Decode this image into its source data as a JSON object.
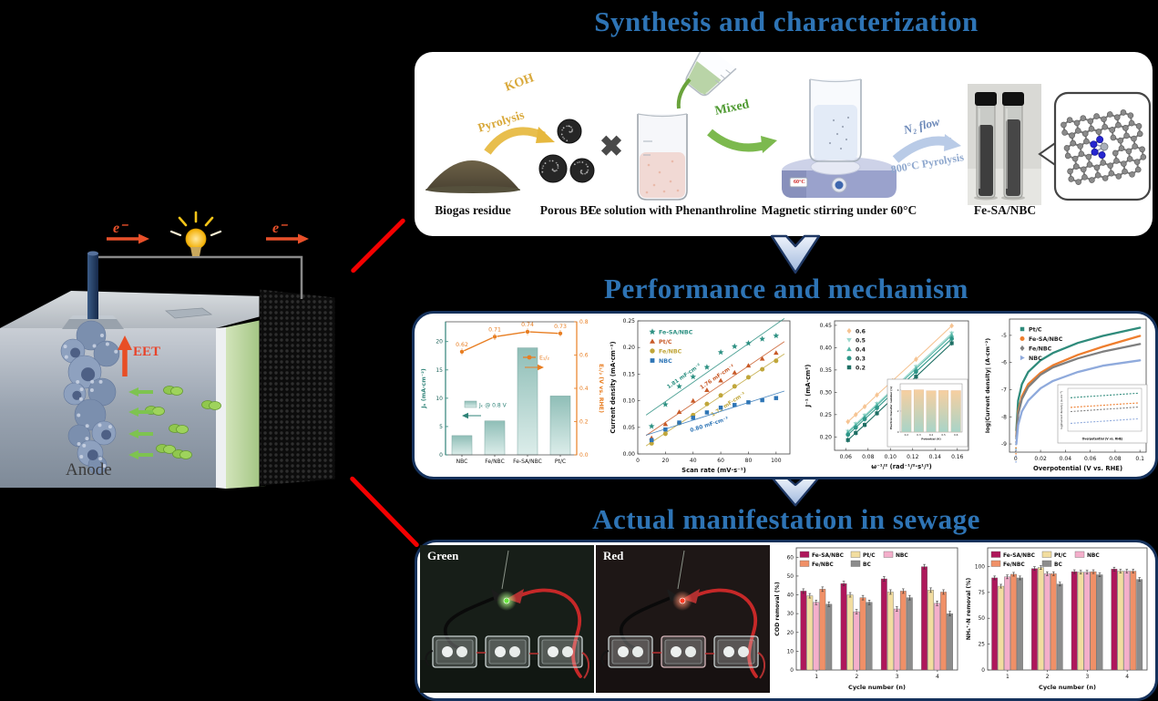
{
  "background": "#000000",
  "title_color": "#2E74B5",
  "sections": {
    "synthesis": {
      "title": "Synthesis and characterization"
    },
    "performance": {
      "title": "Performance and mechanism"
    },
    "sewage": {
      "title": "Actual manifestation in sewage"
    }
  },
  "mfc": {
    "electron_left": "e⁻",
    "electron_right": "e⁻",
    "eet": "EET",
    "anode": "Anode"
  },
  "synthesis_flow": {
    "arrow1_top": "KOH",
    "arrow1_bottom": "Pyrolysis",
    "multiply": "✖",
    "arrow2": "Mixed",
    "arrow3_top": "N₂ flow",
    "arrow3_bottom": "800°C Pyrolysis",
    "stirrer_display": "60°C",
    "captions": [
      "Biogas residue",
      "Porous BC",
      "Fe solution with Phenanthroline",
      "Magnetic stirring under 60°C",
      "Fe-SA/NBC"
    ]
  },
  "photos": {
    "green": {
      "label": "Green",
      "led_color": "#66E83C",
      "glow_color": "#B4FF8C",
      "bg": "#171E18"
    },
    "red": {
      "label": "Red",
      "led_color": "#FF3A22",
      "glow_color": "#FF8D6E",
      "bg": "#1E1716"
    }
  },
  "chart_data": [
    {
      "id": "jk-e12",
      "type": "bar-line",
      "categories": [
        "NBC",
        "Fe/NBC",
        "Fe-SA/NBC",
        "Pt/C"
      ],
      "bar_series": {
        "name": "Jₖ @ 0.8 V",
        "values": [
          3.4,
          6.0,
          18.9,
          10.4
        ],
        "color": "#9EC8C1"
      },
      "line_series": {
        "name": "E₁/₂",
        "values": [
          0.62,
          0.71,
          0.74,
          0.73
        ],
        "labels": [
          "0.62",
          "0.71",
          "0.74",
          "0.73"
        ],
        "color": "#E87E22"
      },
      "ylabel_left": "Jₖ (mA·cm⁻²)",
      "ylabel_right": "E₁/₂ (V vs. RHE)",
      "ylim_left": [
        0,
        23.5
      ],
      "yticks_left": [
        0,
        5,
        10,
        15,
        20
      ],
      "ylim_right": [
        0,
        0.8
      ],
      "yticks_right": [
        "0.0",
        "0.2",
        "0.4",
        "0.6",
        "0.8"
      ]
    },
    {
      "id": "cdl",
      "type": "scatter-linear",
      "x": [
        10,
        20,
        30,
        40,
        50,
        60,
        70,
        80,
        90,
        100
      ],
      "series": [
        {
          "name": "Fe-SA/NBC",
          "marker": "star",
          "color": "#2E9183",
          "values": [
            0.052,
            0.093,
            0.127,
            0.145,
            0.163,
            0.191,
            0.202,
            0.208,
            0.216,
            0.222
          ],
          "annotation": "1.81 mF·cm⁻²",
          "ann_x": 34,
          "ann_dy": 0.02
        },
        {
          "name": "Pt/C",
          "marker": "triangle-up",
          "color": "#C85A28",
          "values": [
            0.03,
            0.056,
            0.079,
            0.1,
            0.12,
            0.138,
            0.153,
            0.166,
            0.179,
            0.19
          ],
          "annotation": "1.76 mF·cm⁻²",
          "ann_x": 58,
          "ann_dy": 0.016
        },
        {
          "name": "Fe/NBC",
          "marker": "circle",
          "color": "#C0A63A",
          "values": [
            0.02,
            0.038,
            0.058,
            0.073,
            0.094,
            0.11,
            0.127,
            0.144,
            0.159,
            0.175
          ],
          "annotation": "1.73 mF·cm⁻²",
          "ann_x": 66,
          "ann_dy": -0.028
        },
        {
          "name": "NBC",
          "marker": "square",
          "color": "#2E75B6",
          "values": [
            0.026,
            0.046,
            0.059,
            0.068,
            0.078,
            0.087,
            0.092,
            0.097,
            0.101,
            0.105
          ],
          "annotation": "0.80 mF·cm⁻²",
          "ann_x": 52,
          "ann_dy": -0.021
        }
      ],
      "xlabel": "Scan rate (mV·s⁻¹)",
      "ylabel": "Current density (mA·cm⁻²)",
      "xlim": [
        0,
        110
      ],
      "xticks": [
        0,
        20,
        40,
        60,
        80,
        100
      ],
      "ylim": [
        0,
        0.25
      ],
      "yticks": [
        "0.00",
        "0.05",
        "0.10",
        "0.15",
        "0.20",
        "0.25"
      ]
    },
    {
      "id": "kl",
      "type": "line-markers",
      "x": [
        0.062,
        0.069,
        0.077,
        0.088,
        0.102,
        0.123,
        0.155
      ],
      "series": [
        {
          "name": "0.6",
          "marker": "diamond",
          "color": "#F6C493",
          "values": [
            0.234,
            0.25,
            0.268,
            0.294,
            0.326,
            0.374,
            0.449
          ]
        },
        {
          "name": "0.5",
          "marker": "triangle-down",
          "color": "#9ED9CE",
          "values": [
            0.212,
            0.229,
            0.248,
            0.274,
            0.307,
            0.357,
            0.432
          ]
        },
        {
          "name": "0.4",
          "marker": "triangle-up",
          "color": "#55B5A6",
          "values": [
            0.21,
            0.226,
            0.245,
            0.271,
            0.304,
            0.353,
            0.428
          ]
        },
        {
          "name": "0.3",
          "marker": "circle",
          "color": "#2E9688",
          "values": [
            0.205,
            0.221,
            0.24,
            0.265,
            0.298,
            0.346,
            0.42
          ]
        },
        {
          "name": "0.2",
          "marker": "square",
          "color": "#1E6F64",
          "values": [
            0.193,
            0.209,
            0.227,
            0.253,
            0.286,
            0.335,
            0.41
          ]
        }
      ],
      "xlabel": "ω⁻¹/² (rad⁻¹/²·s¹/²)",
      "ylabel": "J⁻¹ (mA·cm²)",
      "xlim": [
        0.05,
        0.17
      ],
      "xticks": [
        "0.06",
        "0.08",
        "0.10",
        "0.12",
        "0.14",
        "0.16"
      ],
      "ylim": [
        0.17,
        0.46
      ],
      "yticks": [
        "0.20",
        "0.25",
        "0.30",
        "0.35",
        "0.40",
        "0.45"
      ],
      "inset": {
        "type": "bar",
        "categories": [
          "0.2",
          "0.3",
          "0.4",
          "0.5",
          "0.6"
        ],
        "values": [
          3.97,
          4.03,
          3.94,
          3.96,
          3.95
        ],
        "ylim": [
          0,
          4.6
        ],
        "yticks": [
          0,
          2,
          4
        ],
        "ylabel": "Electron transfer number (n)",
        "xlabel": "Potential (V)",
        "bar_gradient": [
          "#F7CFA0",
          "#A8D4C8"
        ]
      }
    },
    {
      "id": "orr-log",
      "type": "curves",
      "x": [
        0.0005,
        0.002,
        0.005,
        0.01,
        0.02,
        0.03,
        0.05,
        0.07,
        0.1
      ],
      "series": [
        {
          "name": "Pt/C",
          "marker": "square",
          "color": "#2F8B7B",
          "values": [
            -8.5,
            -7.4,
            -6.8,
            -6.35,
            -5.92,
            -5.65,
            -5.28,
            -5.02,
            -4.72
          ]
        },
        {
          "name": "Fe-SA/NBC",
          "marker": "circle",
          "color": "#EE7E2E",
          "values": [
            -8.7,
            -7.8,
            -7.25,
            -6.8,
            -6.38,
            -6.1,
            -5.72,
            -5.42,
            -5.02
          ]
        },
        {
          "name": "Fe/NBC",
          "marker": "diamond",
          "color": "#7F7F7F",
          "values": [
            -8.8,
            -7.9,
            -7.35,
            -6.9,
            -6.45,
            -6.18,
            -5.85,
            -5.6,
            -5.32
          ]
        },
        {
          "name": "NBC",
          "marker": "triangle-right",
          "color": "#8FAADC",
          "values": [
            -9.0,
            -8.3,
            -7.8,
            -7.4,
            -6.95,
            -6.68,
            -6.35,
            -6.12,
            -5.92
          ]
        }
      ],
      "xlabel": "Overpotential (V vs. RHE)",
      "ylabel": "log|Current density| (A·cm⁻²)",
      "xlim": [
        -0.005,
        0.105
      ],
      "xticks": [
        "0",
        "0.02",
        "0.04",
        "0.06",
        "0.08",
        "0.1"
      ],
      "ylim": [
        -9.3,
        -4.4
      ],
      "yticks": [
        -5,
        -6,
        -7,
        -8,
        -9
      ],
      "inset": {
        "xlabel": "Overpotential (V vs. RHE)",
        "ylabel": "log|Current density| (A·cm⁻²)",
        "line_colors": [
          "#2F8B7B",
          "#EE7E2E",
          "#7F7F7F",
          "#8FAADC"
        ],
        "levels": [
          0.1,
          0.38,
          0.5,
          0.84
        ]
      }
    },
    {
      "id": "cod",
      "type": "grouped-bar",
      "categories": [
        "1",
        "2",
        "3",
        "4"
      ],
      "series": [
        {
          "name": "Fe-SA/NBC",
          "color": "#AE175B",
          "values": [
            42,
            46,
            48.5,
            55
          ]
        },
        {
          "name": "Pt/C",
          "color": "#F2DDA0",
          "values": [
            39.5,
            40,
            41.5,
            42.5
          ]
        },
        {
          "name": "NBC",
          "color": "#F4AFCB",
          "values": [
            36,
            31,
            32.5,
            35.5
          ]
        },
        {
          "name": "Fe/NBC",
          "color": "#F09067",
          "values": [
            43,
            38.5,
            42,
            41.5
          ]
        },
        {
          "name": "BC",
          "color": "#8C8C8C",
          "values": [
            35,
            36,
            38.5,
            30
          ]
        }
      ],
      "error": 1.2,
      "xlabel": "Cycle number (n)",
      "ylabel": "COD removal (%)",
      "ylim": [
        0,
        65
      ],
      "yticks": [
        0,
        10,
        20,
        30,
        40,
        50,
        60
      ]
    },
    {
      "id": "nh4n",
      "type": "grouped-bar",
      "categories": [
        "1",
        "2",
        "3",
        "4"
      ],
      "series": [
        {
          "name": "Fe-SA/NBC",
          "color": "#AE175B",
          "values": [
            89,
            98,
            95,
            97.5
          ]
        },
        {
          "name": "Pt/C",
          "color": "#F2DDA0",
          "values": [
            81,
            99,
            94.5,
            95.5
          ]
        },
        {
          "name": "NBC",
          "color": "#F4AFCB",
          "values": [
            90,
            93,
            94.5,
            95.5
          ]
        },
        {
          "name": "Fe/NBC",
          "color": "#F09067",
          "values": [
            92.5,
            93,
            95,
            95.5
          ]
        },
        {
          "name": "BC",
          "color": "#8C8C8C",
          "values": [
            89,
            83,
            92,
            87.5
          ]
        }
      ],
      "error": 1.8,
      "xlabel": "Cycle number (n)",
      "ylabel": "NH₄⁺-N removal (%)",
      "ylim": [
        0,
        118
      ],
      "yticks": [
        0,
        25,
        50,
        75,
        100
      ]
    }
  ]
}
